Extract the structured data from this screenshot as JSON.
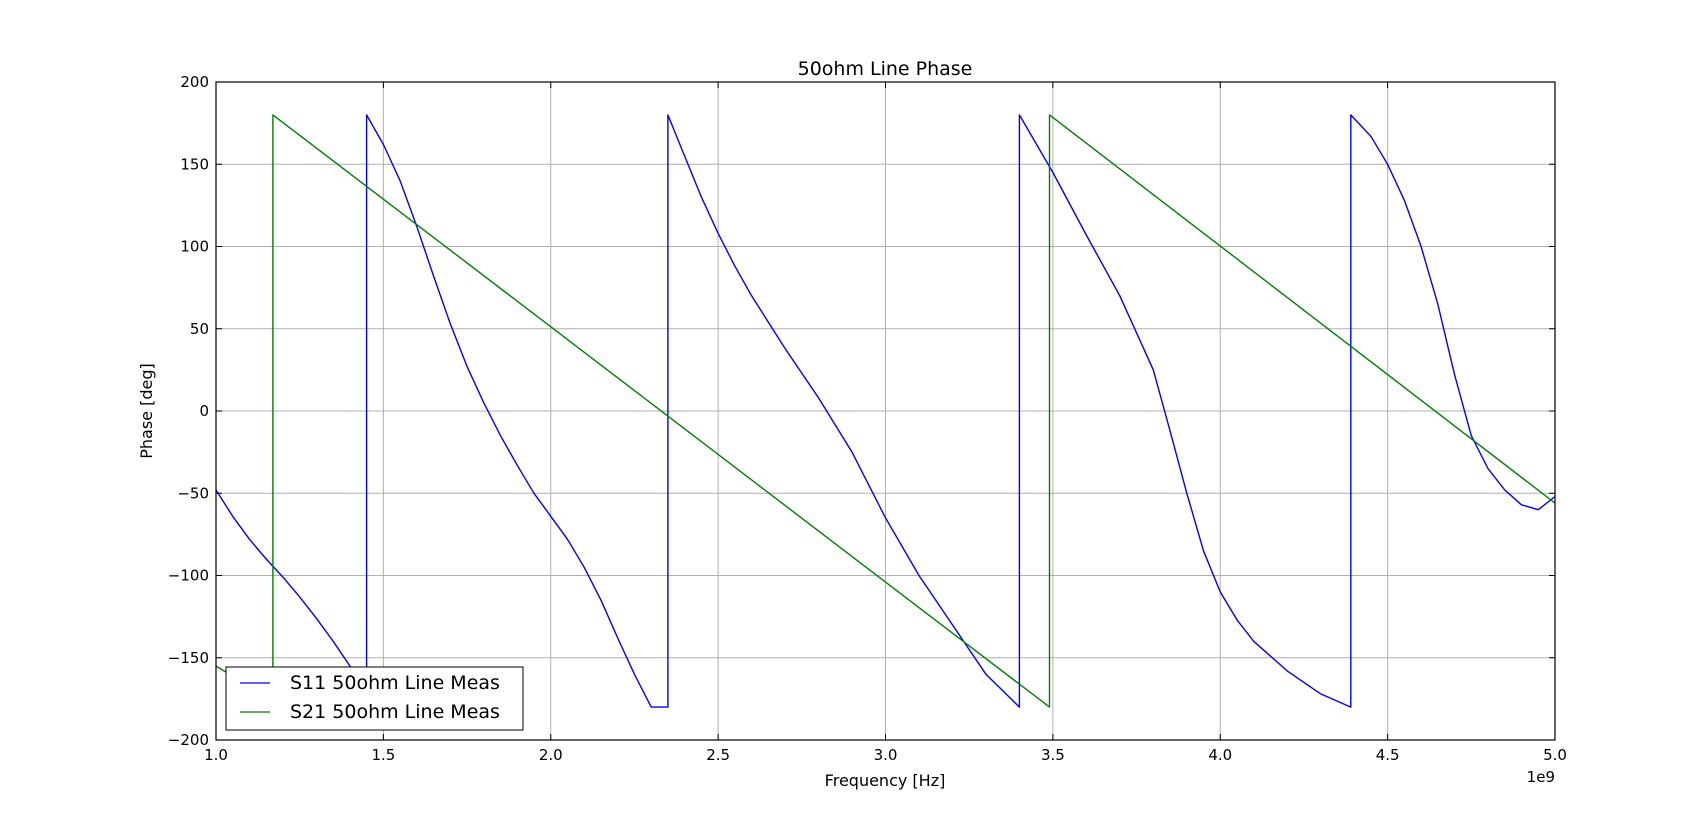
{
  "chart_data": {
    "type": "line",
    "title": "50ohm Line Phase",
    "xlabel": "Frequency [Hz]",
    "ylabel": "Phase [deg]",
    "x_offset_label": "1e9",
    "xlim": [
      1.0,
      5.0
    ],
    "ylim": [
      -200,
      200
    ],
    "x_ticks": [
      1.0,
      1.5,
      2.0,
      2.5,
      3.0,
      3.5,
      4.0,
      4.5,
      5.0
    ],
    "x_tick_labels": [
      "1.0",
      "1.5",
      "2.0",
      "2.5",
      "3.0",
      "3.5",
      "4.0",
      "4.5",
      "5.0"
    ],
    "y_ticks": [
      -200,
      -150,
      -100,
      -50,
      0,
      50,
      100,
      150,
      200
    ],
    "y_tick_labels": [
      "−200",
      "−150",
      "−100",
      "−50",
      "0",
      "50",
      "100",
      "150",
      "200"
    ],
    "grid": true,
    "legend_position": "lower-left",
    "series": [
      {
        "name": "S11 50ohm Line Meas",
        "color": "#0000ff",
        "x": [
          1.0,
          1.05,
          1.1,
          1.15,
          1.2,
          1.25,
          1.3,
          1.35,
          1.4,
          1.45,
          1.45,
          1.5,
          1.55,
          1.6,
          1.65,
          1.7,
          1.75,
          1.8,
          1.85,
          1.9,
          1.95,
          2.0,
          2.05,
          2.1,
          2.15,
          2.2,
          2.25,
          2.3,
          2.35,
          2.35,
          2.4,
          2.45,
          2.5,
          2.55,
          2.6,
          2.7,
          2.8,
          2.9,
          3.0,
          3.1,
          3.2,
          3.3,
          3.35,
          3.4,
          3.4,
          3.5,
          3.6,
          3.7,
          3.8,
          3.85,
          3.9,
          3.95,
          4.0,
          4.05,
          4.1,
          4.2,
          4.3,
          4.39,
          4.39,
          4.45,
          4.5,
          4.55,
          4.6,
          4.65,
          4.7,
          4.75,
          4.8,
          4.85,
          4.9,
          4.95,
          5.0
        ],
        "y": [
          -48,
          -64,
          -78,
          -90,
          -101,
          -113,
          -126,
          -140,
          -155,
          -172,
          180,
          162,
          140,
          112,
          82,
          53,
          27,
          5,
          -15,
          -33,
          -50,
          -64,
          -78,
          -95,
          -115,
          -138,
          -160,
          -180,
          -180,
          180,
          155,
          130,
          108,
          88,
          70,
          38,
          8,
          -25,
          -65,
          -100,
          -130,
          -160,
          -170,
          -180,
          180,
          145,
          107,
          70,
          25,
          -12,
          -50,
          -85,
          -110,
          -127,
          -140,
          -158,
          -172,
          -180,
          180,
          167,
          150,
          128,
          100,
          65,
          22,
          -15,
          -35,
          -48,
          -57,
          -60,
          -52
        ]
      },
      {
        "name": "S21 50ohm Line Meas",
        "color": "#008000",
        "x": [
          1.0,
          1.17,
          1.17,
          3.49,
          3.49,
          5.0
        ],
        "y": [
          -155,
          -176,
          180,
          -180,
          180,
          -56
        ]
      }
    ]
  }
}
